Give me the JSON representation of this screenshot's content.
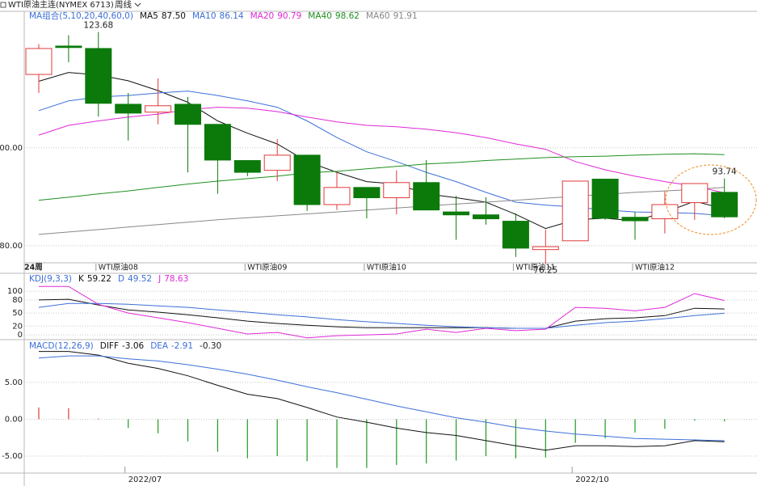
{
  "header": {
    "title": "WTI原油主连(NYMEX 6713)",
    "period": "周线"
  },
  "chart_data": [
    {
      "type": "candlestick",
      "legend_label": "MA组合(5,10,20,40,60,0)",
      "period_label": "24周",
      "categories": [
        null,
        null,
        "WTI原油08",
        null,
        null,
        null,
        null,
        "WTI原油09",
        null,
        null,
        null,
        "WTI原油10",
        null,
        null,
        null,
        null,
        "WTI原油11",
        null,
        null,
        null,
        "WTI原油12",
        null,
        null,
        null
      ],
      "open": [
        115.0,
        120.8,
        120.3,
        108.9,
        107.3,
        108.9,
        104.8,
        97.4,
        95.4,
        98.5,
        88.4,
        91.9,
        89.8,
        92.9,
        86.9,
        86.3,
        85.0,
        79.2,
        81.0,
        93.6,
        85.8,
        85.5,
        88.8,
        90.9
      ],
      "high": [
        121.2,
        123.0,
        123.68,
        111.2,
        114.2,
        110.4,
        104.8,
        97.4,
        101.8,
        98.5,
        95.0,
        91.9,
        95.4,
        97.5,
        90.2,
        89.9,
        86.6,
        83.3,
        93.2,
        93.6,
        86.9,
        91.1,
        92.7,
        93.74
      ],
      "low": [
        111.2,
        117.5,
        106.4,
        101.5,
        104.8,
        95.0,
        90.6,
        94.2,
        93.2,
        87.1,
        87.3,
        85.6,
        86.4,
        87.3,
        81.2,
        84.3,
        77.7,
        76.25,
        81.0,
        85.3,
        81.2,
        82.5,
        85.3,
        85.6
      ],
      "close": [
        120.3,
        120.5,
        109.1,
        107.1,
        108.6,
        104.8,
        97.5,
        95.0,
        98.5,
        88.4,
        91.9,
        89.8,
        92.9,
        87.3,
        86.3,
        85.5,
        79.5,
        79.8,
        93.2,
        85.6,
        85.1,
        88.4,
        92.7,
        85.9
      ],
      "up_color": "#e03a3a",
      "down_color": "#0b7a0b",
      "series": [
        {
          "name": "MA5",
          "color": "#111111",
          "legend_value": "87.50",
          "values": [
            113.6,
            115.4,
            114.9,
            113.7,
            111.7,
            109.3,
            105.5,
            103.0,
            100.8,
            97.2,
            95.0,
            93.1,
            92.6,
            90.6,
            89.8,
            88.9,
            86.4,
            83.5,
            85.3,
            85.6,
            85.1,
            86.8,
            89.1,
            87.5
          ]
        },
        {
          "name": "MA10",
          "color": "#3d6fd8",
          "legend_value": "86.14",
          "values": [
            107.6,
            109.6,
            110.4,
            110.7,
            111.2,
            111.6,
            110.7,
            109.6,
            108.3,
            105.5,
            102.1,
            99.2,
            97.2,
            95.0,
            93.1,
            90.9,
            88.9,
            88.3,
            87.9,
            87.3,
            86.9,
            86.8,
            86.6,
            86.14
          ]
        },
        {
          "name": "MA20",
          "color": "#e028d8",
          "legend_value": "90.79",
          "values": [
            102.6,
            104.6,
            105.5,
            106.3,
            106.9,
            107.8,
            108.3,
            108.1,
            107.4,
            106.3,
            105.3,
            104.6,
            104.3,
            103.8,
            103.1,
            102.1,
            100.8,
            99.7,
            97.2,
            95.5,
            94.2,
            93.1,
            92.2,
            90.79
          ]
        },
        {
          "name": "MA40",
          "color": "#1f8f1f",
          "legend_value": "98.62",
          "values": [
            89.3,
            89.9,
            90.6,
            91.2,
            91.9,
            92.6,
            93.2,
            93.7,
            94.2,
            94.9,
            95.2,
            95.7,
            96.2,
            96.7,
            97.0,
            97.4,
            97.7,
            98.0,
            98.2,
            98.3,
            98.5,
            98.7,
            98.8,
            98.62
          ]
        },
        {
          "name": "MA60",
          "color": "#888888",
          "legend_value": "91.91",
          "values": [
            82.3,
            82.8,
            83.3,
            83.8,
            84.3,
            84.8,
            85.3,
            85.7,
            86.1,
            86.5,
            86.9,
            87.3,
            87.7,
            88.1,
            88.5,
            88.9,
            89.3,
            89.7,
            90.1,
            90.5,
            90.9,
            91.2,
            91.5,
            91.91
          ]
        }
      ],
      "ylim": [
        76.5,
        127.9
      ],
      "yticks": [
        {
          "value": 100,
          "label": "100.00"
        },
        {
          "value": 80,
          "label": "80.00"
        }
      ],
      "grid": true
    },
    {
      "type": "line",
      "legend_label": "KDJ(9,3,3)",
      "series": [
        {
          "name": "K",
          "color": "#111111",
          "legend_value": "59.22",
          "values": [
            80,
            81.5,
            68.5,
            57,
            52,
            46,
            39,
            31.5,
            26,
            22,
            18.5,
            16.5,
            16.5,
            16.5,
            16.5,
            16.5,
            15,
            15,
            31.5,
            37,
            39,
            44,
            61,
            59.22
          ]
        },
        {
          "name": "D",
          "color": "#3d6fd8",
          "legend_value": "49.52",
          "values": [
            63,
            72,
            72,
            70,
            66.5,
            63,
            57,
            52,
            46,
            41,
            35,
            30,
            26,
            22,
            18.5,
            16.5,
            15,
            15,
            22,
            28,
            31.5,
            37,
            44,
            49.52
          ]
        },
        {
          "name": "J",
          "color": "#e028d8",
          "legend_value": "78.63",
          "values": [
            111,
            111,
            70,
            50,
            39,
            28,
            15,
            2,
            5.5,
            -7,
            -2,
            0,
            2,
            13,
            5.5,
            15,
            9.5,
            13,
            63,
            61,
            55,
            63,
            94.5,
            78.63
          ]
        }
      ],
      "ylim": [
        -11,
        141
      ],
      "yticks": [
        0,
        20,
        50,
        80,
        100
      ],
      "grid": true
    },
    {
      "type": "macd",
      "legend_label": "MACD(12,26,9)",
      "categories": [
        null,
        null,
        null,
        "2022/07",
        null,
        null,
        null,
        null,
        null,
        null,
        null,
        null,
        null,
        null,
        null,
        null,
        null,
        null,
        "2022/10",
        null,
        null,
        null,
        null,
        null
      ],
      "series": [
        {
          "name": "DIFF",
          "color": "#111111",
          "legend_value": "-3.06",
          "values": [
            9.2,
            9.2,
            8.7,
            7.6,
            6.9,
            5.9,
            4.6,
            3.4,
            2.8,
            1.6,
            0.3,
            -0.4,
            -1.2,
            -1.8,
            -2.2,
            -2.9,
            -3.6,
            -4.2,
            -3.6,
            -3.6,
            -3.7,
            -3.6,
            -2.9,
            -3.06
          ]
        },
        {
          "name": "DEA",
          "color": "#3d6fd8",
          "legend_value": "-2.91",
          "values": [
            8.3,
            8.6,
            8.6,
            8.2,
            7.9,
            7.4,
            6.8,
            6.1,
            5.3,
            4.4,
            3.6,
            2.7,
            1.8,
            1.0,
            0.2,
            -0.4,
            -1.1,
            -1.6,
            -2.0,
            -2.3,
            -2.6,
            -2.7,
            -2.8,
            -2.91
          ]
        }
      ],
      "bars": {
        "legend_value": "-0.30",
        "up_color": "#e03a3a",
        "down_color": "#1f9a1f",
        "values": [
          1.6,
          1.5,
          0.1,
          -1.2,
          -1.9,
          -3.0,
          -4.4,
          -5.3,
          -5.0,
          -5.7,
          -6.6,
          -6.6,
          -6.2,
          -6.0,
          -5.6,
          -5.0,
          -5.3,
          -5.2,
          -3.2,
          -2.6,
          -1.8,
          -1.3,
          -0.2,
          -0.3
        ]
      },
      "ylim": [
        -7.3,
        10.8
      ],
      "yticks": [
        {
          "value": 5,
          "label": "5.00"
        },
        {
          "value": 0,
          "label": "0.00"
        },
        {
          "value": -5,
          "label": "-5.00"
        }
      ],
      "grid": true
    }
  ]
}
